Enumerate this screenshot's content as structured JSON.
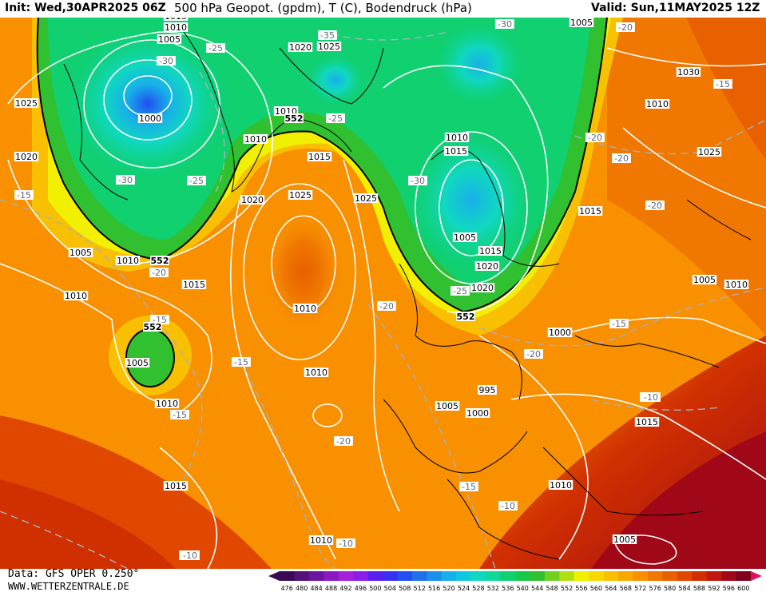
{
  "header": {
    "init": "Init: Wed,30APR2025 06Z",
    "title": "500 hPa Geopot. (gpdm), T (C), Bodendruck (hPa)",
    "valid": "Valid: Sun,11MAY2025 12Z"
  },
  "footer": {
    "data_source": "Data: GFS OPER 0.250°",
    "website": "WWW.WETTERZENTRALE.DE"
  },
  "colorbar": {
    "labels": [
      "476",
      "480",
      "484",
      "488",
      "492",
      "496",
      "500",
      "504",
      "508",
      "512",
      "516",
      "520",
      "524",
      "528",
      "532",
      "536",
      "540",
      "544",
      "548",
      "552",
      "556",
      "560",
      "564",
      "568",
      "572",
      "576",
      "580",
      "584",
      "588",
      "592",
      "596",
      "600"
    ],
    "colors": [
      "#3a0a55",
      "#55107a",
      "#6e12a0",
      "#8a1ac0",
      "#a520d8",
      "#8a1ee8",
      "#5a20f0",
      "#3a30f5",
      "#2050f0",
      "#2070e8",
      "#1a90e8",
      "#18b0e8",
      "#10c8e0",
      "#10d8c0",
      "#10d898",
      "#10d070",
      "#18c848",
      "#30c030",
      "#70d020",
      "#b0e010",
      "#f0f000",
      "#f8d800",
      "#f8c000",
      "#f8a800",
      "#f89000",
      "#f07800",
      "#e86000",
      "#e04800",
      "#d03000",
      "#c01810",
      "#a00818",
      "#800020"
    ]
  },
  "pressure_labels": [
    "1015",
    "1010",
    "1005",
    "1000",
    "1020",
    "1025",
    "1005",
    "1025",
    "1020",
    "1010",
    "1015",
    "1010",
    "1020",
    "1025",
    "1025",
    "1005",
    "1010",
    "1030",
    "1025",
    "1015",
    "1015",
    "1010",
    "1010",
    "1005",
    "1010",
    "1015",
    "1010",
    "1010",
    "1005",
    "1000",
    "995",
    "1000",
    "1005",
    "1010",
    "1015",
    "1010",
    "1010",
    "1005",
    "1015",
    "1010",
    "1020",
    "1005",
    "1015",
    "1020"
  ],
  "pressure_labels_positions_note": "",
  "temperature_labels": [
    "-30",
    "-25",
    "-35",
    "-30",
    "-20",
    "-25",
    "-30",
    "-25",
    "-20",
    "-30",
    "-15",
    "-20",
    "-20",
    "-25",
    "-15",
    "-20",
    "-15",
    "-15",
    "-20",
    "-15",
    "-20",
    "-15",
    "-10",
    "-15",
    "-10",
    "-20",
    "-15",
    "-10",
    "-10",
    "-10"
  ],
  "geopotential_labels": [
    "552",
    "552",
    "552",
    "552",
    "552"
  ],
  "colors": {
    "contour_white": "#ffffff",
    "temp_dash": "#a8b0c0",
    "coast": "#000000"
  }
}
